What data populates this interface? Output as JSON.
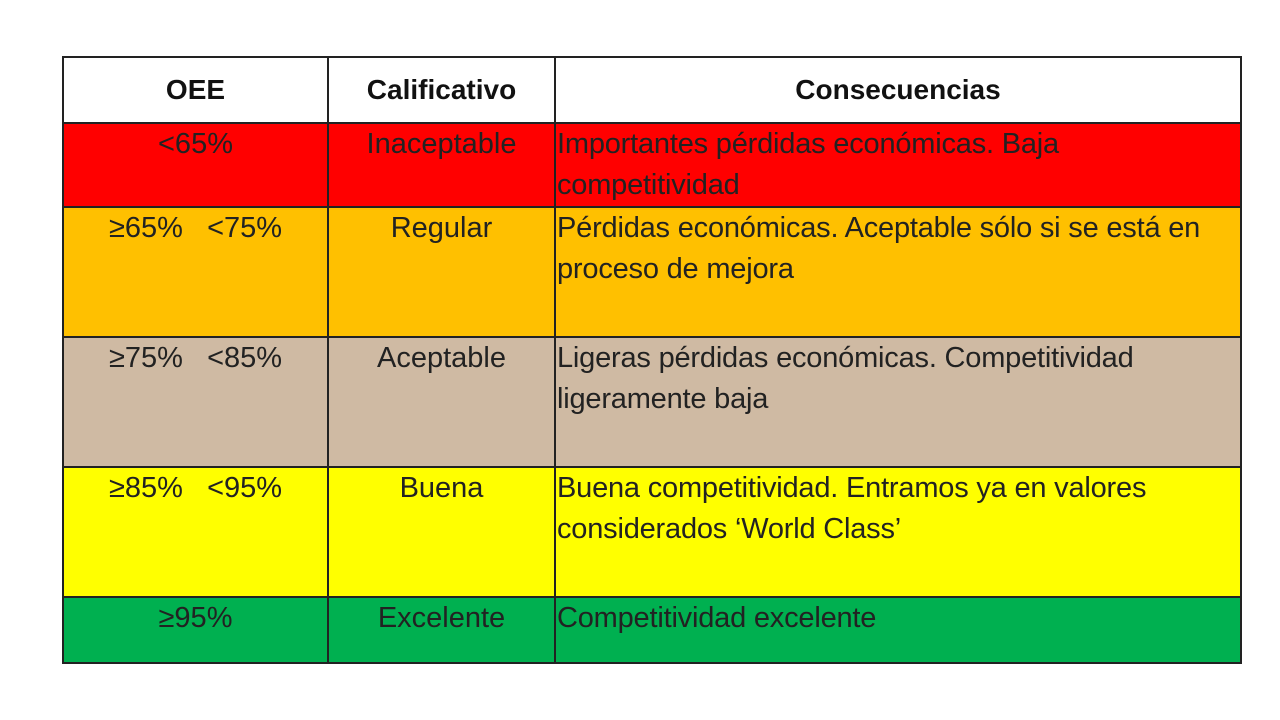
{
  "table": {
    "header": [
      "OEE",
      "Calificativo",
      "Consecuencias"
    ],
    "rows": [
      [
        "<65%",
        "Inaceptable",
        "Importantes pérdidas económicas. Baja competitividad"
      ],
      [
        "≥65%   <75%",
        "Regular",
        "Pérdidas económicas. Aceptable sólo si se está en proceso de mejora"
      ],
      [
        "≥75%   <85%",
        "Aceptable",
        "Ligeras pérdidas económicas. Competitividad ligeramente baja"
      ],
      [
        "≥85%   <95%",
        "Buena",
        "Buena competitividad. Entramos ya en valores considerados ‘World Class’"
      ],
      [
        "≥95%",
        "Excelente",
        "Competitividad excelente"
      ]
    ]
  }
}
